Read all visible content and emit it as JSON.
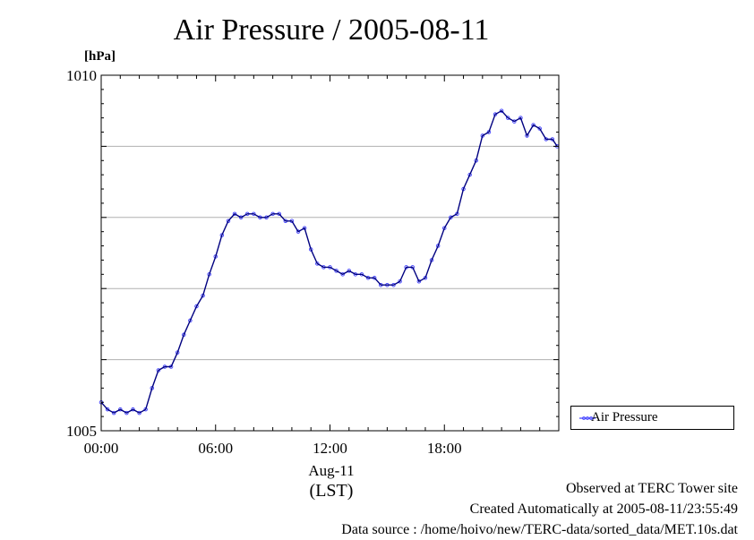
{
  "chart_data": {
    "type": "line",
    "title": "Air Pressure / 2005-08-11",
    "ylabel": "[hPa]",
    "xlabel": "(LST)",
    "x_date_label": "Aug-11",
    "ylim": [
      1005,
      1010
    ],
    "y_ticks": [
      "1005",
      "1010"
    ],
    "x_ticks": [
      "00:00",
      "06:00",
      "12:00",
      "18:00"
    ],
    "grid": "horizontal",
    "legend_position": "bottom-right, outside",
    "series": [
      {
        "name": "Air Pressure",
        "color": "#4040ff",
        "marker": "open-circle",
        "x": [
          "00:00",
          "00:20",
          "00:40",
          "01:00",
          "01:20",
          "01:40",
          "02:00",
          "02:20",
          "02:40",
          "03:00",
          "03:20",
          "03:40",
          "04:00",
          "04:20",
          "04:40",
          "05:00",
          "05:20",
          "05:40",
          "06:00",
          "06:20",
          "06:40",
          "07:00",
          "07:20",
          "07:40",
          "08:00",
          "08:20",
          "08:40",
          "09:00",
          "09:20",
          "09:40",
          "10:00",
          "10:20",
          "10:40",
          "11:00",
          "11:20",
          "11:40",
          "12:00",
          "12:20",
          "12:40",
          "13:00",
          "13:20",
          "13:40",
          "14:00",
          "14:20",
          "14:40",
          "15:00",
          "15:20",
          "15:40",
          "16:00",
          "16:20",
          "16:40",
          "17:00",
          "17:20",
          "17:40",
          "18:00",
          "18:20",
          "18:40",
          "19:00",
          "19:20",
          "19:40",
          "20:00",
          "20:20",
          "20:40",
          "21:00",
          "21:20",
          "21:40",
          "22:00",
          "22:20",
          "22:40",
          "23:00",
          "23:20",
          "23:40",
          "23:55"
        ],
        "y": [
          1005.4,
          1005.3,
          1005.25,
          1005.3,
          1005.25,
          1005.3,
          1005.25,
          1005.3,
          1005.6,
          1005.85,
          1005.9,
          1005.9,
          1006.1,
          1006.35,
          1006.55,
          1006.75,
          1006.9,
          1007.2,
          1007.45,
          1007.75,
          1007.95,
          1008.05,
          1008.0,
          1008.05,
          1008.05,
          1008.0,
          1008.0,
          1008.05,
          1008.05,
          1007.95,
          1007.95,
          1007.8,
          1007.85,
          1007.55,
          1007.35,
          1007.3,
          1007.3,
          1007.25,
          1007.2,
          1007.25,
          1007.2,
          1007.2,
          1007.15,
          1007.15,
          1007.05,
          1007.05,
          1007.05,
          1007.1,
          1007.3,
          1007.3,
          1007.1,
          1007.15,
          1007.4,
          1007.6,
          1007.85,
          1008.0,
          1008.05,
          1008.4,
          1008.6,
          1008.8,
          1009.15,
          1009.2,
          1009.45,
          1009.5,
          1009.4,
          1009.35,
          1009.4,
          1009.15,
          1009.3,
          1009.25,
          1009.1,
          1009.1,
          1009.0
        ]
      }
    ]
  },
  "footer": {
    "observed": "Observed at TERC Tower site",
    "created": "Created Automatically at 2005-08-11/23:55:49",
    "source": "Data source : /home/hoivo/new/TERC-data/sorted_data/MET.10s.dat"
  }
}
